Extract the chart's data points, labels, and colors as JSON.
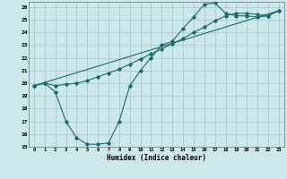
{
  "xlabel": "Humidex (Indice chaleur)",
  "bg_color": "#cce8ea",
  "grid_color": "#aacccc",
  "line_color": "#1a6b6b",
  "xlim": [
    -0.5,
    23.5
  ],
  "ylim": [
    15,
    26.4
  ],
  "xticks": [
    0,
    1,
    2,
    3,
    4,
    5,
    6,
    7,
    8,
    9,
    10,
    11,
    12,
    13,
    14,
    15,
    16,
    17,
    18,
    19,
    20,
    21,
    22,
    23
  ],
  "yticks": [
    15,
    16,
    17,
    18,
    19,
    20,
    21,
    22,
    23,
    24,
    25,
    26
  ],
  "line1_x": [
    0,
    1,
    2,
    3,
    4,
    5,
    6,
    7,
    8,
    9,
    10,
    11,
    12,
    13,
    14,
    15,
    16,
    17,
    18,
    19,
    20,
    21,
    22,
    23
  ],
  "line1_y": [
    19.8,
    20.0,
    19.3,
    17.0,
    15.7,
    15.2,
    15.2,
    15.3,
    17.0,
    19.8,
    21.0,
    22.0,
    23.0,
    23.3,
    24.3,
    25.2,
    26.2,
    26.3,
    25.5,
    25.3,
    25.3,
    25.2,
    25.3,
    25.7
  ],
  "line2_x": [
    0,
    1,
    2,
    3,
    4,
    5,
    6,
    7,
    8,
    9,
    10,
    11,
    12,
    13,
    14,
    15,
    16,
    17,
    18,
    19,
    20,
    21,
    22,
    23
  ],
  "line2_y": [
    19.8,
    20.0,
    19.8,
    19.9,
    20.0,
    20.2,
    20.5,
    20.8,
    21.1,
    21.5,
    21.9,
    22.3,
    22.7,
    23.1,
    23.5,
    24.0,
    24.4,
    24.9,
    25.3,
    25.5,
    25.5,
    25.4,
    25.3,
    25.7
  ],
  "line3_x": [
    0,
    23
  ],
  "line3_y": [
    19.8,
    25.7
  ]
}
